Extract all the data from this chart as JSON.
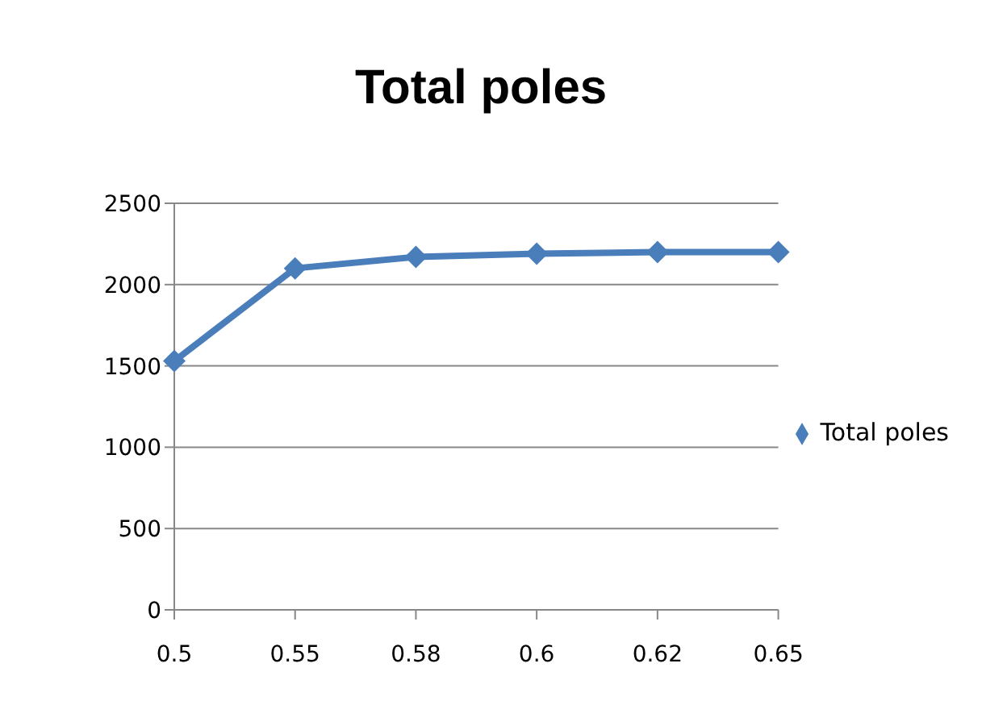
{
  "chart_data": {
    "type": "line",
    "title": "Total poles",
    "categories": [
      "0.5",
      "0.55",
      "0.58",
      "0.6",
      "0.62",
      "0.65"
    ],
    "series": [
      {
        "name": "Total poles",
        "color": "#4a7ebb",
        "values": [
          1530,
          2100,
          2170,
          2190,
          2200,
          2200
        ]
      }
    ],
    "ylim": [
      0,
      2500
    ],
    "yticks": [
      0,
      500,
      1000,
      1500,
      2000,
      2500
    ],
    "grid": "y",
    "legend": "right",
    "marker": "diamond"
  }
}
